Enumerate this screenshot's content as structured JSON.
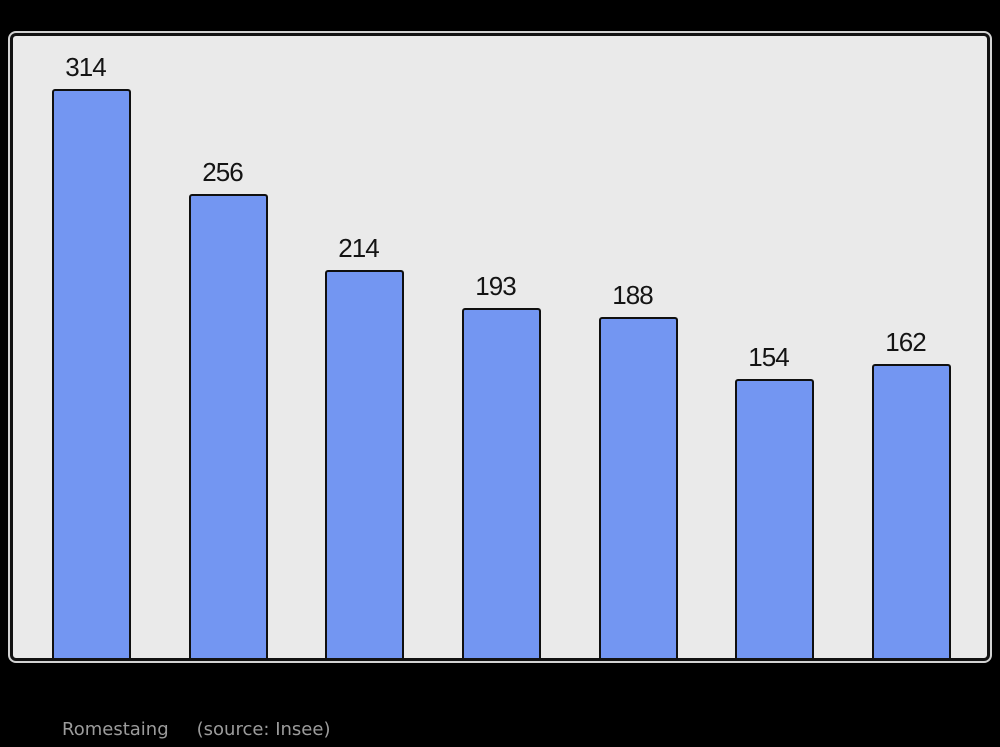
{
  "caption": {
    "commune": "Romestaing",
    "source": "(source: Insee)"
  },
  "chart_data": {
    "type": "bar",
    "title": "",
    "values": [
      314,
      256,
      214,
      193,
      188,
      154,
      162
    ],
    "data_labels": [
      "314",
      "256",
      "214",
      "193",
      "188",
      "154",
      "162"
    ],
    "ylim": [
      0,
      343
    ],
    "grid": false,
    "legend": false,
    "bar_fill": "#7396f2",
    "bar_stroke": "#101010",
    "plot_bg": "#eaeaea",
    "page_bg": "#000000",
    "label_color": "#141414",
    "caption_color": "#9c9c9c"
  }
}
